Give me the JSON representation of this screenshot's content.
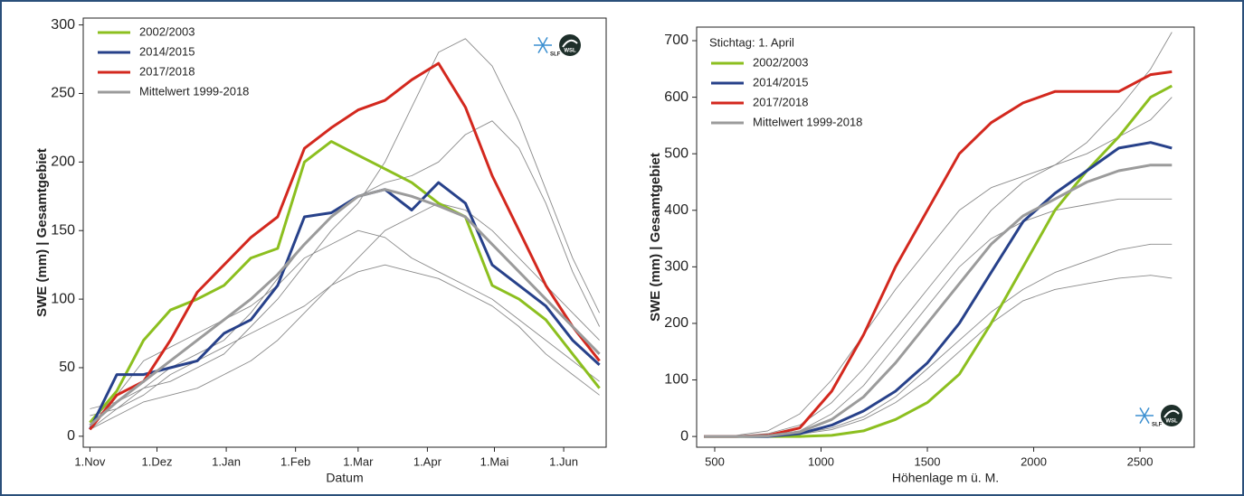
{
  "chart_data": [
    {
      "type": "line",
      "xlabel": "Datum",
      "ylabel": "SWE (mm) | Gesamtgebiet",
      "logos": [
        "SLF",
        "WSL"
      ],
      "x": [
        0,
        12,
        24,
        36,
        48,
        60,
        72,
        84,
        96,
        108,
        120,
        132,
        144,
        156,
        168,
        180,
        192,
        204,
        216,
        228
      ],
      "xlim": [
        -3,
        231
      ],
      "xticks": [
        {
          "value": 0,
          "label": "1.Nov"
        },
        {
          "value": 30,
          "label": "1.Dez"
        },
        {
          "value": 61,
          "label": "1.Jan"
        },
        {
          "value": 92,
          "label": "1.Feb"
        },
        {
          "value": 120,
          "label": "1.Mar"
        },
        {
          "value": 151,
          "label": "1.Apr"
        },
        {
          "value": 181,
          "label": "1.Mai"
        },
        {
          "value": 212,
          "label": "1.Jun"
        }
      ],
      "ylim": [
        -8,
        305
      ],
      "yticks": [
        0,
        50,
        100,
        150,
        200,
        250,
        300
      ],
      "legend": "upper left",
      "series": [
        {
          "color": "#8a8a8a",
          "values": [
            20,
            25,
            35,
            40,
            50,
            60,
            80,
            100,
            125,
            150,
            170,
            200,
            240,
            280,
            290,
            270,
            230,
            180,
            130,
            90
          ]
        },
        {
          "color": "#8a8a8a",
          "values": [
            5,
            15,
            25,
            30,
            35,
            45,
            55,
            70,
            90,
            110,
            130,
            150,
            160,
            170,
            165,
            150,
            130,
            110,
            90,
            70
          ]
        },
        {
          "color": "#8a8a8a",
          "values": [
            10,
            30,
            55,
            65,
            75,
            85,
            95,
            110,
            130,
            140,
            150,
            145,
            130,
            120,
            110,
            100,
            85,
            70,
            55,
            40
          ]
        },
        {
          "color": "#8a8a8a",
          "values": [
            5,
            20,
            35,
            50,
            60,
            70,
            90,
            115,
            140,
            160,
            175,
            185,
            190,
            200,
            220,
            230,
            210,
            170,
            120,
            80
          ]
        },
        {
          "color": "#8a8a8a",
          "values": [
            15,
            20,
            30,
            45,
            55,
            65,
            75,
            85,
            95,
            110,
            120,
            125,
            120,
            115,
            105,
            95,
            80,
            60,
            45,
            30
          ]
        },
        {
          "name": "2002/2003",
          "color": "#8cbf1f",
          "values": [
            10,
            33,
            70,
            92,
            100,
            110,
            130,
            137,
            200,
            215,
            205,
            195,
            185,
            170,
            160,
            110,
            100,
            85,
            60,
            35
          ]
        },
        {
          "name": "2014/2015",
          "color": "#27418a",
          "values": [
            5,
            45,
            45,
            50,
            55,
            75,
            85,
            110,
            160,
            163,
            175,
            180,
            165,
            185,
            170,
            125,
            110,
            95,
            70,
            52
          ]
        },
        {
          "name": "2017/2018",
          "color": "#d3281e",
          "values": [
            5,
            30,
            40,
            70,
            105,
            125,
            145,
            160,
            210,
            225,
            238,
            245,
            260,
            272,
            240,
            190,
            150,
            110,
            80,
            55
          ]
        },
        {
          "name": "Mittelwert 1999-2018",
          "color": "#9b9b9b",
          "values": [
            8,
            25,
            40,
            55,
            70,
            85,
            100,
            118,
            140,
            160,
            175,
            180,
            175,
            168,
            160,
            140,
            120,
            100,
            80,
            60
          ]
        }
      ]
    },
    {
      "type": "line",
      "xlabel": "Höhenlage m ü. M.",
      "ylabel": "SWE (mm) | Gesamtgebiet",
      "logos": [
        "SLF",
        "WSL"
      ],
      "annotation": "Stichtag: 1. April",
      "x": [
        450,
        600,
        750,
        900,
        1050,
        1200,
        1350,
        1500,
        1650,
        1800,
        1950,
        2100,
        2250,
        2400,
        2550,
        2650
      ],
      "xlim": [
        415,
        2755
      ],
      "xticks": [
        500,
        1000,
        1500,
        2000,
        2500
      ],
      "ylim": [
        -19,
        724
      ],
      "yticks": [
        0,
        100,
        200,
        300,
        400,
        500,
        600,
        700
      ],
      "legend": "upper left",
      "series": [
        {
          "color": "#8a8a8a",
          "values": [
            0,
            1,
            5,
            20,
            60,
            120,
            190,
            260,
            330,
            400,
            450,
            480,
            520,
            580,
            650,
            715
          ]
        },
        {
          "color": "#8a8a8a",
          "values": [
            0,
            0,
            1,
            5,
            15,
            35,
            70,
            120,
            170,
            220,
            260,
            290,
            310,
            330,
            340,
            340
          ]
        },
        {
          "color": "#8a8a8a",
          "values": [
            0,
            0,
            2,
            10,
            40,
            90,
            160,
            230,
            300,
            350,
            380,
            400,
            410,
            420,
            420,
            420
          ]
        },
        {
          "color": "#8a8a8a",
          "values": [
            0,
            0,
            1,
            4,
            12,
            30,
            60,
            100,
            150,
            200,
            240,
            260,
            270,
            280,
            285,
            280
          ]
        },
        {
          "color": "#8a8a8a",
          "values": [
            0,
            2,
            10,
            40,
            100,
            180,
            260,
            330,
            400,
            440,
            460,
            480,
            500,
            530,
            560,
            600
          ]
        },
        {
          "name": "2002/2003",
          "color": "#8cbf1f",
          "values": [
            0,
            0,
            0,
            0,
            2,
            10,
            30,
            60,
            110,
            200,
            300,
            400,
            470,
            530,
            600,
            620
          ]
        },
        {
          "name": "2014/2015",
          "color": "#27418a",
          "values": [
            0,
            0,
            0,
            5,
            20,
            45,
            80,
            130,
            200,
            290,
            380,
            430,
            470,
            510,
            520,
            510
          ]
        },
        {
          "name": "2017/2018",
          "color": "#d3281e",
          "values": [
            0,
            0,
            2,
            15,
            80,
            180,
            300,
            400,
            500,
            555,
            590,
            610,
            610,
            610,
            640,
            645
          ]
        },
        {
          "name": "Mittelwert 1999-2018",
          "color": "#9b9b9b",
          "values": [
            0,
            0,
            1,
            8,
            30,
            70,
            130,
            200,
            270,
            340,
            390,
            420,
            450,
            470,
            480,
            480
          ]
        }
      ]
    }
  ]
}
